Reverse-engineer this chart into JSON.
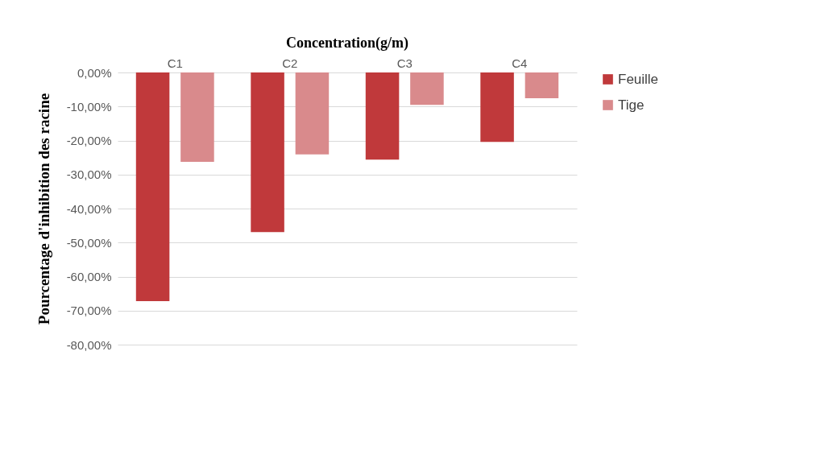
{
  "chart_data": {
    "type": "bar",
    "title": "Concentration(g/m)",
    "ylabel": "Pourcentage d'inhibition des racine",
    "categories": [
      "C1",
      "C2",
      "C3",
      "C4"
    ],
    "series": [
      {
        "name": "Feuille",
        "color": "#c0393b",
        "values": [
          -67.2,
          -46.9,
          -25.6,
          -20.4
        ]
      },
      {
        "name": "Tige",
        "color": "#d98a8c",
        "values": [
          -26.3,
          -24.1,
          -9.5,
          -7.6
        ]
      }
    ],
    "ylim": [
      -80,
      0
    ],
    "yticks": [
      {
        "value": 0,
        "label": "0,00%"
      },
      {
        "value": -10,
        "label": "-10,00%"
      },
      {
        "value": -20,
        "label": "-20,00%"
      },
      {
        "value": -30,
        "label": "-30,00%"
      },
      {
        "value": -40,
        "label": "-40,00%"
      },
      {
        "value": -50,
        "label": "-50,00%"
      },
      {
        "value": -60,
        "label": "-60,00%"
      },
      {
        "value": -70,
        "label": "-70,00%"
      },
      {
        "value": -80,
        "label": "-80,00%"
      }
    ],
    "grid": "y",
    "legend": "right"
  }
}
